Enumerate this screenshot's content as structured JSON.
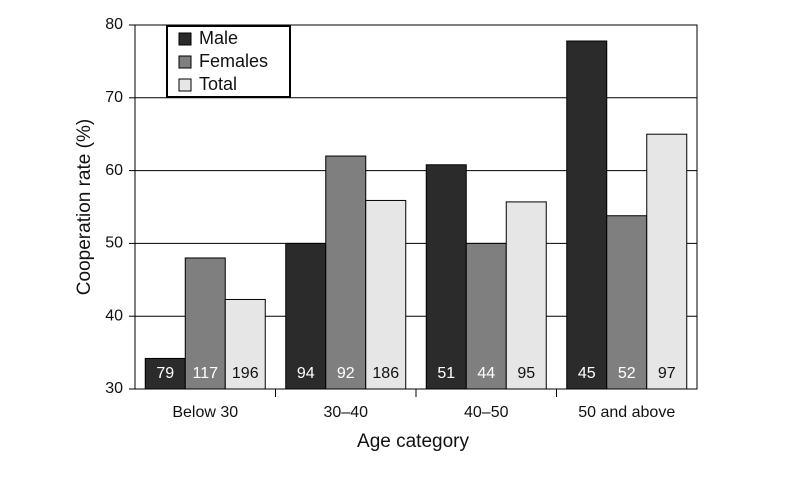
{
  "chart_data": {
    "type": "bar",
    "x_label": "Age category",
    "y_label": "Cooperation rate (%)",
    "categories": [
      "Below 30",
      "30–40",
      "40–50",
      "50 and above"
    ],
    "series": [
      {
        "name": "Male",
        "color": "#2b2b2b",
        "values": [
          34.2,
          50,
          60.8,
          77.8
        ],
        "n": [
          79,
          94,
          51,
          45
        ]
      },
      {
        "name": "Females",
        "color": "#7f7f7f",
        "values": [
          48,
          62,
          50,
          53.8
        ],
        "n": [
          117,
          92,
          44,
          52
        ]
      },
      {
        "name": "Total",
        "color": "#e6e6e6",
        "values": [
          42.3,
          55.9,
          55.7,
          65
        ],
        "n": [
          196,
          186,
          95,
          97
        ]
      }
    ],
    "ylim": [
      30,
      80
    ],
    "yticks": [
      30,
      40,
      50,
      60,
      70,
      80
    ],
    "grid": true,
    "legend": "upper left"
  }
}
